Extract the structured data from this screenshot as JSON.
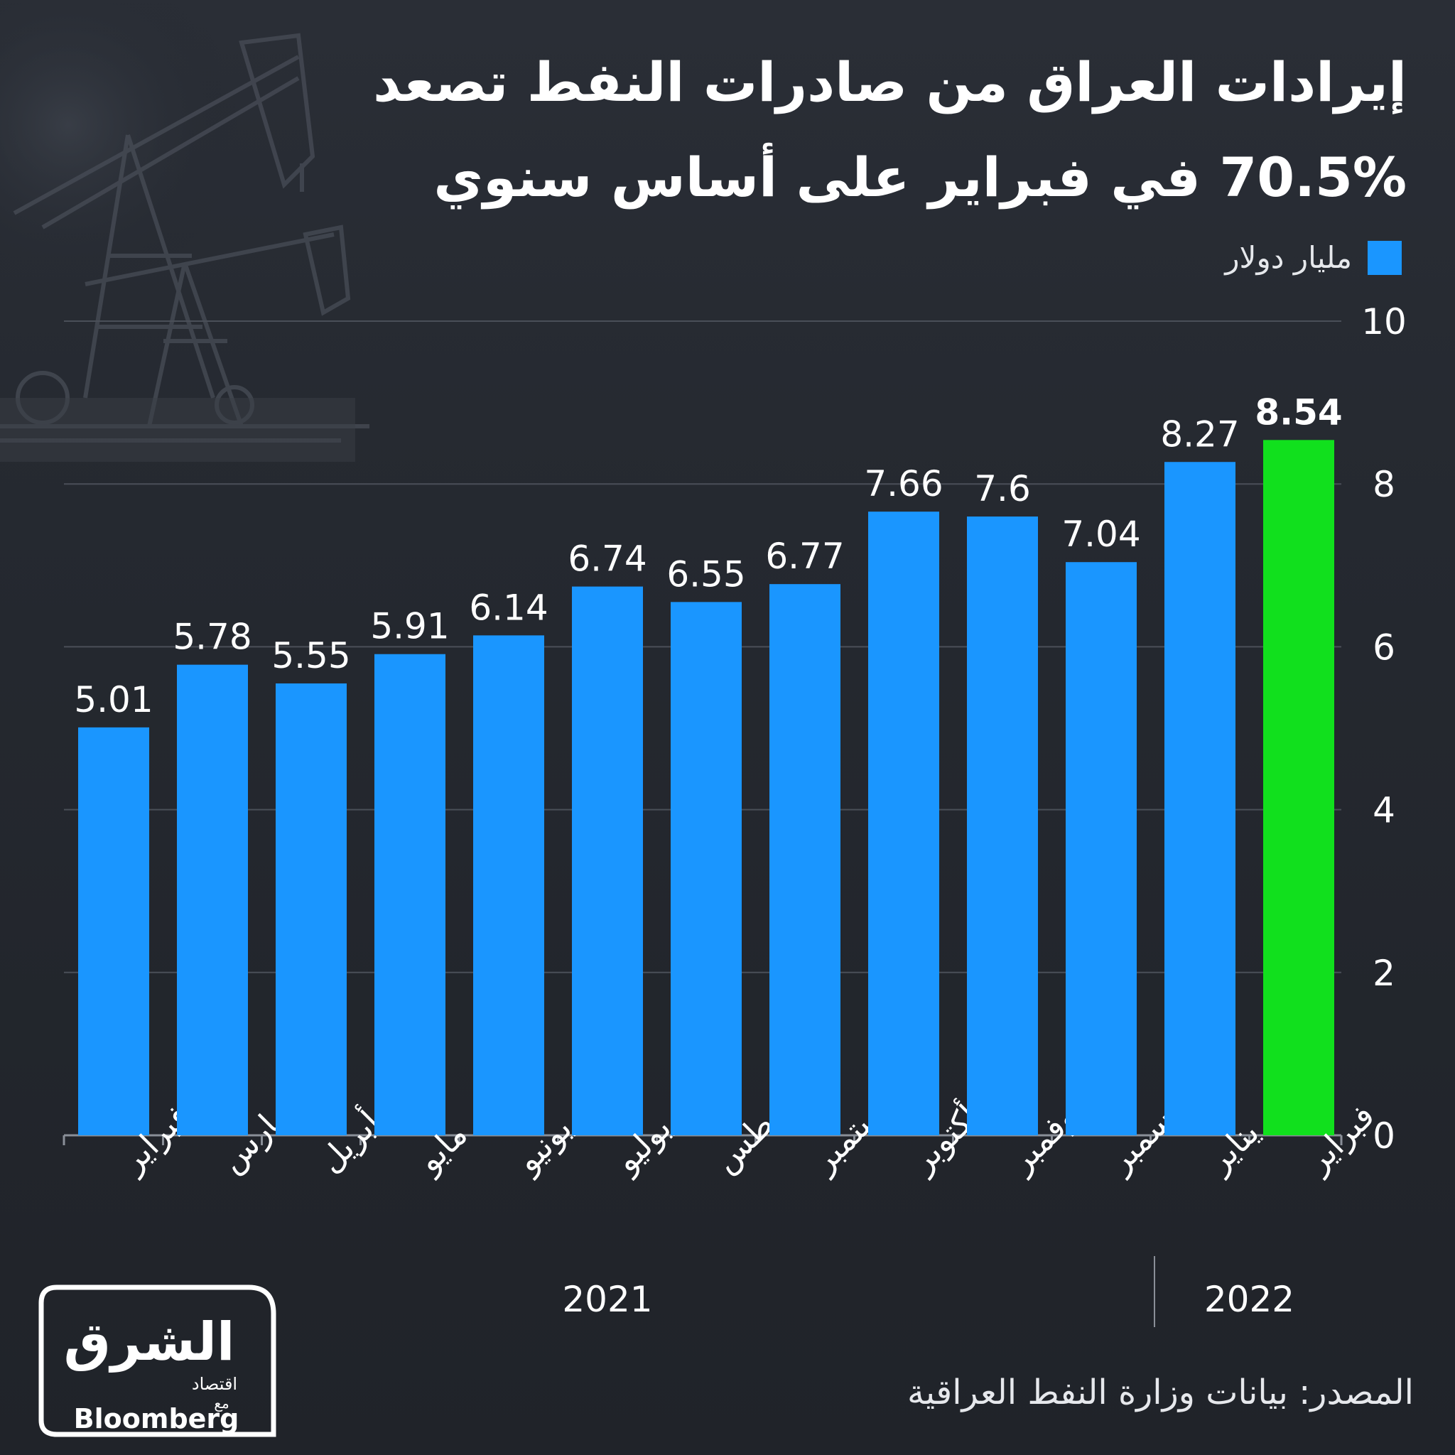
{
  "title_lines": [
    "إيرادات العراق من صادرات النفط تصعد",
    "70.5% في فبراير على أساس سنوي"
  ],
  "legend": {
    "label": "مليار دولار",
    "color": "#1a96ff"
  },
  "colors": {
    "bar": "#1a96ff",
    "highlight": "#11e01d",
    "grid": "#4a4f58",
    "axis": "#8a8f98",
    "background": "#23272f"
  },
  "chart_data": {
    "type": "bar",
    "categories": [
      "فبراير",
      "مارس",
      "أبريل",
      "مايو",
      "يونيو",
      "يوليو",
      "أغسطس",
      "سبتمبر",
      "أكتوبر",
      "نوفمبر",
      "ديسمبر",
      "يناير",
      "فبراير"
    ],
    "values": [
      5.01,
      5.78,
      5.55,
      5.91,
      6.14,
      6.74,
      6.55,
      6.77,
      7.66,
      7.6,
      7.04,
      8.27,
      8.54
    ],
    "value_labels": [
      "5.01",
      "5.78",
      "5.55",
      "5.91",
      "6.14",
      "6.74",
      "6.55",
      "6.77",
      "7.66",
      "7.6",
      "7.04",
      "8.27",
      "8.54"
    ],
    "highlight_index": 12,
    "y_ticks": [
      "0",
      "2",
      "4",
      "6",
      "8",
      "10"
    ],
    "ylim": [
      0,
      10
    ],
    "grid": true,
    "year_groups": [
      {
        "label": "2021",
        "from": 0,
        "to": 10
      },
      {
        "label": "2022",
        "from": 11,
        "to": 12
      }
    ]
  },
  "source": "المصدر: بيانات وزارة النفط العراقية",
  "logo": {
    "brand_arabic": "الشرق",
    "sub_arabic": "اقتصاد",
    "with_arabic": "مع",
    "partner": "Bloomberg"
  }
}
